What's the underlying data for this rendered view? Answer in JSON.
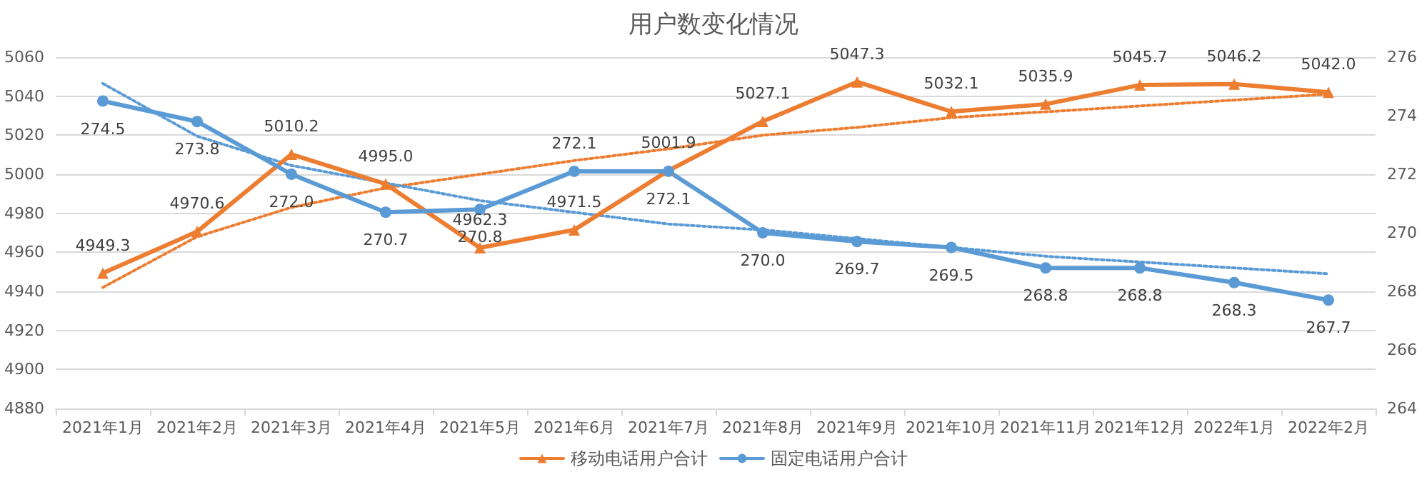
{
  "chart_data": {
    "type": "line",
    "title": "用户数变化情况",
    "categories": [
      "2021年1月",
      "2021年2月",
      "2021年3月",
      "2021年4月",
      "2021年5月",
      "2021年6月",
      "2021年7月",
      "2021年8月",
      "2021年9月",
      "2021年10月",
      "2021年11月",
      "2021年12月",
      "2022年1月",
      "2022年2月"
    ],
    "series": [
      {
        "name": "移动电话用户合计",
        "color": "#ed7d31",
        "marker": "triangle",
        "values": [
          4949.3,
          4970.6,
          5010.2,
          4995.0,
          4962.3,
          4971.5,
          5001.9,
          5027.1,
          5047.3,
          5032.1,
          5035.9,
          5045.7,
          5046.2,
          5042.0
        ],
        "value_labels": [
          "4949.3",
          "4970.6",
          "5010.2",
          "4995.0",
          "4962.3",
          "4971.5",
          "5001.9",
          "5027.1",
          "5047.3",
          "5032.1",
          "5035.9",
          "5045.7",
          "5046.2",
          "5042.0"
        ]
      },
      {
        "name": "固定电话用户合计",
        "color": "#5b9bd5",
        "marker": "circle",
        "axis": "y2",
        "values": [
          274.5,
          273.8,
          272.0,
          270.7,
          270.8,
          272.1,
          272.1,
          270.0,
          269.7,
          269.5,
          268.8,
          268.8,
          268.3,
          267.7
        ],
        "value_labels": [
          "274.5",
          "273.8",
          "272.0",
          "270.7",
          "270.8",
          "272.1",
          "272.1",
          "270.0",
          "269.7",
          "269.5",
          "268.8",
          "268.8",
          "268.3",
          "267.7"
        ]
      },
      {
        "color": "#ed7d31",
        "marker": "none",
        "line_style": "dotted",
        "values": [
          4942,
          4968,
          4983,
          4993,
          5000,
          5007,
          5013,
          5020,
          5024,
          5029,
          5032,
          5035,
          5038,
          5041
        ]
      },
      {
        "color": "#5b9bd5",
        "marker": "none",
        "line_style": "dotted",
        "axis": "y2",
        "values": [
          275.1,
          273.3,
          272.3,
          271.7,
          271.1,
          270.7,
          270.3,
          270.1,
          269.8,
          269.5,
          269.2,
          269.0,
          268.8,
          268.6
        ]
      }
    ],
    "ylim": [
      4880,
      5060
    ],
    "yticks": [
      4880,
      4900,
      4920,
      4940,
      4960,
      4980,
      5000,
      5020,
      5040,
      5060
    ],
    "y2lim": [
      264,
      276
    ],
    "y2ticks": [
      264,
      266,
      268,
      270,
      272,
      274,
      276
    ],
    "grid": "y",
    "legend": "bottom"
  }
}
